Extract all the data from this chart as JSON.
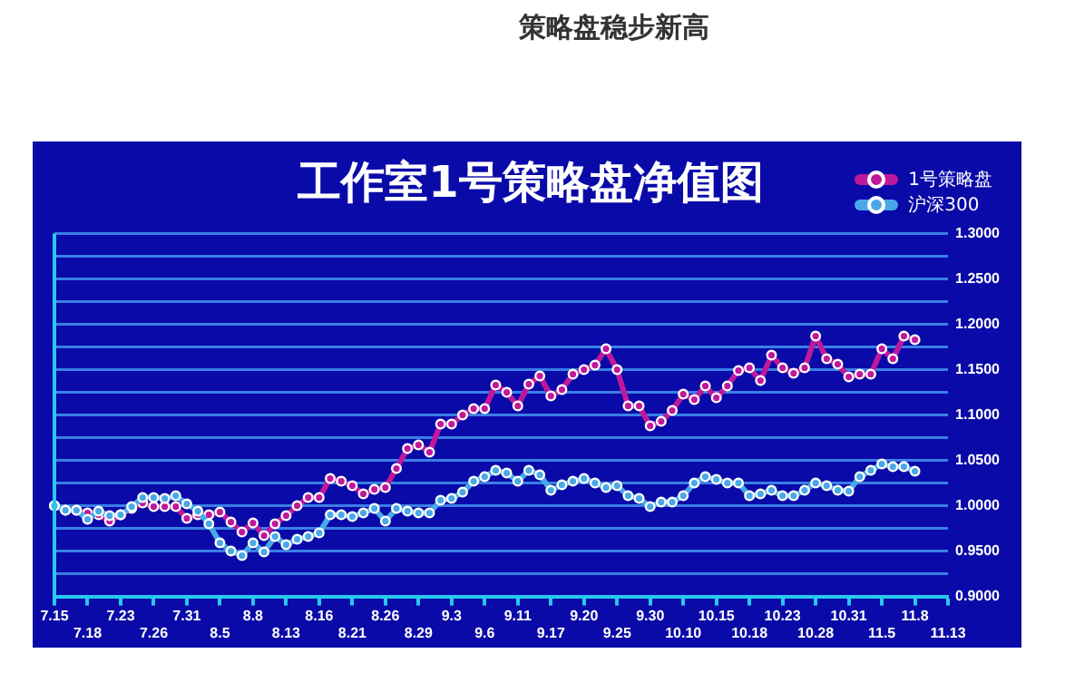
{
  "chart_data": {
    "type": "line",
    "title": "工作室1号策略盘净值图",
    "annotations": [
      "策略盘稳步新高"
    ],
    "categories": [
      "7.15",
      null,
      null,
      "7.18",
      null,
      null,
      "7.23",
      null,
      null,
      "7.26",
      null,
      null,
      "7.31",
      null,
      null,
      "8.5",
      null,
      null,
      "8.8",
      null,
      null,
      "8.13",
      null,
      null,
      "8.16",
      null,
      null,
      "8.21",
      null,
      null,
      "8.26",
      null,
      null,
      "8.29",
      null,
      null,
      "9.3",
      null,
      null,
      "9.6",
      null,
      null,
      "9.11",
      null,
      null,
      "9.17",
      null,
      null,
      "9.20",
      null,
      null,
      "9.25",
      null,
      null,
      "9.30",
      null,
      null,
      "10.10",
      null,
      null,
      "10.15",
      null,
      null,
      "10.18",
      null,
      null,
      "10.23",
      null,
      null,
      "10.28",
      null,
      null,
      "10.31",
      null,
      null,
      "11.5",
      null,
      null,
      "11.8",
      null,
      null,
      "11.13"
    ],
    "series": [
      {
        "name": "1号策略盘",
        "color": "#c0189c",
        "values": [
          1.0,
          0.995,
          0.995,
          0.992,
          0.99,
          0.983,
          0.99,
          0.997,
          1.003,
          0.999,
          0.999,
          0.999,
          0.986,
          0.99,
          0.99,
          0.993,
          0.982,
          0.971,
          0.981,
          0.967,
          0.98,
          0.989,
          1.0,
          1.009,
          1.009,
          1.03,
          1.027,
          1.022,
          1.013,
          1.018,
          1.02,
          1.041,
          1.063,
          1.067,
          1.059,
          1.09,
          1.09,
          1.1,
          1.107,
          1.107,
          1.133,
          1.125,
          1.11,
          1.134,
          1.143,
          1.121,
          1.128,
          1.145,
          1.15,
          1.155,
          1.173,
          1.15,
          1.11,
          1.11,
          1.088,
          1.093,
          1.105,
          1.123,
          1.117,
          1.132,
          1.119,
          1.132,
          1.149,
          1.152,
          1.138,
          1.166,
          1.152,
          1.146,
          1.152,
          1.187,
          1.162,
          1.156,
          1.142,
          1.145,
          1.145,
          1.173,
          1.162,
          1.187,
          1.183,
          null,
          null,
          null
        ]
      },
      {
        "name": "沪深300",
        "color": "#4aa8e8",
        "values": [
          1.0,
          0.995,
          0.995,
          0.985,
          0.994,
          0.989,
          0.99,
          0.999,
          1.009,
          1.009,
          1.008,
          1.011,
          1.002,
          0.994,
          0.98,
          0.959,
          0.95,
          0.945,
          0.959,
          0.949,
          0.966,
          0.957,
          0.963,
          0.966,
          0.97,
          0.99,
          0.99,
          0.988,
          0.992,
          0.997,
          0.983,
          0.997,
          0.994,
          0.992,
          0.992,
          1.006,
          1.008,
          1.015,
          1.027,
          1.032,
          1.039,
          1.036,
          1.027,
          1.039,
          1.034,
          1.017,
          1.023,
          1.027,
          1.03,
          1.025,
          1.02,
          1.022,
          1.011,
          1.008,
          0.999,
          1.004,
          1.004,
          1.011,
          1.025,
          1.032,
          1.029,
          1.025,
          1.025,
          1.011,
          1.013,
          1.017,
          1.011,
          1.011,
          1.017,
          1.025,
          1.022,
          1.017,
          1.016,
          1.032,
          1.039,
          1.046,
          1.043,
          1.043,
          1.038,
          null,
          null,
          null
        ]
      }
    ],
    "ylim": [
      0.9,
      1.3
    ],
    "yticks": [
      {
        "value": 0.9,
        "label": "0.9000"
      },
      {
        "value": 0.925,
        "label": null
      },
      {
        "value": 0.95,
        "label": "0.9500"
      },
      {
        "value": 0.975,
        "label": null
      },
      {
        "value": 1.0,
        "label": "1.0000"
      },
      {
        "value": 1.025,
        "label": null
      },
      {
        "value": 1.05,
        "label": "1.0500"
      },
      {
        "value": 1.075,
        "label": null
      },
      {
        "value": 1.1,
        "label": "1.1000"
      },
      {
        "value": 1.125,
        "label": null
      },
      {
        "value": 1.15,
        "label": "1.1500"
      },
      {
        "value": 1.175,
        "label": null
      },
      {
        "value": 1.2,
        "label": "1.2000"
      },
      {
        "value": 1.225,
        "label": null
      },
      {
        "value": 1.25,
        "label": "1.2500"
      },
      {
        "value": 1.275,
        "label": null
      },
      {
        "value": 1.3,
        "label": "1.3000"
      }
    ],
    "grid": "y",
    "legend": "top right",
    "marker": "circle"
  }
}
